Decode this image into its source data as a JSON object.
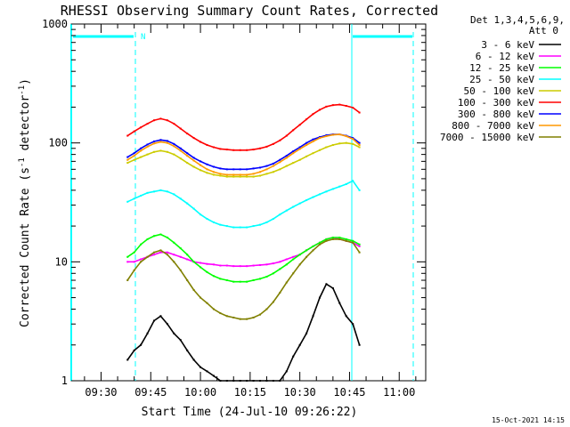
{
  "chart_data": {
    "type": "line",
    "title": "RHESSI Observing Summary Count Rates, Corrected",
    "xlabel": "Start Time (24-Jul-10 09:26:22)",
    "ylabel": "Corrected Count Rate (s",
    "ylabel_sup1": "-1",
    "ylabel_mid": " detector",
    "ylabel_sup2": "-1",
    "ylabel_end": ")",
    "y_scale": "log",
    "ylim": [
      1,
      1000
    ],
    "y_ticks": [
      {
        "value": 1,
        "label": "1"
      },
      {
        "value": 10,
        "label": "10"
      },
      {
        "value": 100,
        "label": "100"
      },
      {
        "value": 1000,
        "label": "1000"
      }
    ],
    "x_unit": "minutes",
    "xlim": [
      -5,
      102
    ],
    "x_ticks": [
      {
        "value": 4,
        "label": "09:30"
      },
      {
        "value": 19,
        "label": "09:45"
      },
      {
        "value": 34,
        "label": "10:00"
      },
      {
        "value": 49,
        "label": "10:15"
      },
      {
        "value": 64,
        "label": "10:30"
      },
      {
        "value": 79,
        "label": "10:45"
      },
      {
        "value": 94,
        "label": "11:00"
      }
    ],
    "legend_header": [
      "Det 1,3,4,5,6,9,",
      "Att 0"
    ],
    "legend_position": "right",
    "timestamp": "15-Oct-2021 14:15",
    "night_marker_label": "N",
    "series": [
      {
        "name": "3 - 6 keV",
        "color": "#000000",
        "x": [
          12,
          14,
          16,
          18,
          20,
          22,
          24,
          26,
          28,
          30,
          32,
          34,
          36,
          38,
          40,
          42,
          44,
          46,
          48,
          50,
          52,
          54,
          56,
          58,
          60,
          62,
          64,
          66,
          68,
          70,
          72,
          74,
          76,
          78,
          80,
          82
        ],
        "values": [
          1.5,
          1.8,
          2.0,
          2.5,
          3.2,
          3.5,
          3.0,
          2.5,
          2.2,
          1.8,
          1.5,
          1.3,
          1.2,
          1.1,
          1.0,
          1.0,
          1.0,
          1.0,
          1.0,
          1.0,
          1.0,
          1.0,
          1.0,
          1.0,
          1.2,
          1.6,
          2.0,
          2.5,
          3.5,
          5.0,
          6.5,
          6.0,
          4.5,
          3.5,
          3.0,
          2.0
        ]
      },
      {
        "name": "6 - 12 keV",
        "color": "#ff00ff",
        "x": [
          12,
          14,
          16,
          18,
          20,
          22,
          24,
          26,
          28,
          30,
          32,
          34,
          36,
          38,
          40,
          42,
          44,
          46,
          48,
          50,
          52,
          54,
          56,
          58,
          60,
          62,
          64,
          66,
          68,
          70,
          72,
          74,
          76,
          78,
          80,
          82
        ],
        "values": [
          10,
          10,
          10.5,
          11,
          11.5,
          12,
          12,
          11.5,
          11,
          10.5,
          10,
          9.8,
          9.6,
          9.5,
          9.3,
          9.3,
          9.2,
          9.2,
          9.2,
          9.3,
          9.4,
          9.5,
          9.7,
          10,
          10.5,
          11,
          11.5,
          12.5,
          13.5,
          14.5,
          15.5,
          16,
          15.5,
          15,
          14.5,
          13.5
        ]
      },
      {
        "name": "12 - 25 keV",
        "color": "#00ff00",
        "x": [
          12,
          14,
          16,
          18,
          20,
          22,
          24,
          26,
          28,
          30,
          32,
          34,
          36,
          38,
          40,
          42,
          44,
          46,
          48,
          50,
          52,
          54,
          56,
          58,
          60,
          62,
          64,
          66,
          68,
          70,
          72,
          74,
          76,
          78,
          80,
          82
        ],
        "values": [
          11,
          12,
          14,
          15.5,
          16.5,
          17,
          16,
          14.5,
          13,
          11.5,
          10,
          9,
          8.2,
          7.6,
          7.2,
          7.0,
          6.8,
          6.8,
          6.8,
          7.0,
          7.2,
          7.5,
          8.0,
          8.7,
          9.5,
          10.5,
          11.5,
          12.5,
          13.5,
          14.5,
          15.5,
          16,
          16,
          15.5,
          15,
          14
        ]
      },
      {
        "name": "25 - 50 keV",
        "color": "#00ffff",
        "x": [
          12,
          14,
          16,
          18,
          20,
          22,
          24,
          26,
          28,
          30,
          32,
          34,
          36,
          38,
          40,
          42,
          44,
          46,
          48,
          50,
          52,
          54,
          56,
          58,
          60,
          62,
          64,
          66,
          68,
          70,
          72,
          74,
          76,
          78,
          80,
          82
        ],
        "values": [
          32,
          34,
          36,
          38,
          39,
          40,
          39,
          37,
          34,
          31,
          28,
          25,
          23,
          21.5,
          20.5,
          20,
          19.5,
          19.5,
          19.5,
          20,
          20.5,
          21.5,
          23,
          25,
          27,
          29,
          31,
          33,
          35,
          37,
          39,
          41,
          43,
          45,
          48,
          40
        ]
      },
      {
        "name": "50 - 100 keV",
        "color": "#cccc00",
        "x": [
          12,
          14,
          16,
          18,
          20,
          22,
          24,
          26,
          28,
          30,
          32,
          34,
          36,
          38,
          40,
          42,
          44,
          46,
          48,
          50,
          52,
          54,
          56,
          58,
          60,
          62,
          64,
          66,
          68,
          70,
          72,
          74,
          76,
          78,
          80,
          82
        ],
        "values": [
          68,
          72,
          76,
          80,
          84,
          86,
          84,
          80,
          74,
          68,
          63,
          59,
          56,
          54,
          53,
          52,
          52,
          52,
          52,
          52,
          53,
          55,
          57,
          60,
          64,
          68,
          72,
          77,
          82,
          87,
          92,
          96,
          99,
          100,
          98,
          92
        ]
      },
      {
        "name": "100 - 300 keV",
        "color": "#ff0000",
        "x": [
          12,
          14,
          16,
          18,
          20,
          22,
          24,
          26,
          28,
          30,
          32,
          34,
          36,
          38,
          40,
          42,
          44,
          46,
          48,
          50,
          52,
          54,
          56,
          58,
          60,
          62,
          64,
          66,
          68,
          70,
          72,
          74,
          76,
          78,
          80,
          82
        ],
        "values": [
          115,
          125,
          135,
          145,
          155,
          160,
          155,
          145,
          132,
          120,
          110,
          102,
          96,
          92,
          89,
          88,
          87,
          87,
          87,
          88,
          90,
          93,
          98,
          105,
          115,
          128,
          142,
          158,
          175,
          190,
          202,
          208,
          210,
          205,
          198,
          180
        ]
      },
      {
        "name": "300 - 800 keV",
        "color": "#0000ff",
        "x": [
          12,
          14,
          16,
          18,
          20,
          22,
          24,
          26,
          28,
          30,
          32,
          34,
          36,
          38,
          40,
          42,
          44,
          46,
          48,
          50,
          52,
          54,
          56,
          58,
          60,
          62,
          64,
          66,
          68,
          70,
          72,
          74,
          76,
          78,
          80,
          82
        ],
        "values": [
          76,
          82,
          90,
          97,
          103,
          106,
          104,
          98,
          90,
          82,
          75,
          70,
          66,
          63,
          61,
          60,
          60,
          60,
          60,
          61,
          62,
          64,
          67,
          72,
          78,
          85,
          92,
          100,
          107,
          112,
          116,
          118,
          118,
          115,
          110,
          100
        ]
      },
      {
        "name": "800 - 7000 keV",
        "color": "#ff9900",
        "x": [
          12,
          14,
          16,
          18,
          20,
          22,
          24,
          26,
          28,
          30,
          32,
          34,
          36,
          38,
          40,
          42,
          44,
          46,
          48,
          50,
          52,
          54,
          56,
          58,
          60,
          62,
          64,
          66,
          68,
          70,
          72,
          74,
          76,
          78,
          80,
          82
        ],
        "values": [
          72,
          78,
          86,
          93,
          99,
          102,
          100,
          94,
          86,
          78,
          71,
          65,
          60,
          57,
          55,
          54,
          54,
          54,
          54,
          55,
          57,
          60,
          64,
          69,
          75,
          82,
          89,
          96,
          103,
          110,
          114,
          117,
          118,
          114,
          108,
          96
        ]
      },
      {
        "name": "7000 - 15000 keV",
        "color": "#808000",
        "x": [
          12,
          14,
          16,
          18,
          20,
          22,
          24,
          26,
          28,
          30,
          32,
          34,
          36,
          38,
          40,
          42,
          44,
          46,
          48,
          50,
          52,
          54,
          56,
          58,
          60,
          62,
          64,
          66,
          68,
          70,
          72,
          74,
          76,
          78,
          80,
          82
        ],
        "values": [
          7,
          8.5,
          10,
          11,
          12,
          12.5,
          11.5,
          10,
          8.5,
          7,
          5.8,
          5,
          4.5,
          4,
          3.7,
          3.5,
          3.4,
          3.3,
          3.3,
          3.4,
          3.6,
          4,
          4.6,
          5.5,
          6.7,
          8,
          9.5,
          11,
          12.5,
          14,
          15,
          15.5,
          15.5,
          15,
          14.5,
          12
        ]
      }
    ]
  }
}
